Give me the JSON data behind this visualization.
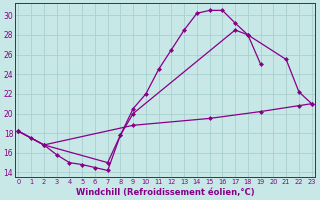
{
  "background_color": "#c8e8e8",
  "grid_color": "#a8d0d0",
  "line_color": "#880088",
  "markersize": 2.5,
  "linewidth": 0.9,
  "xlabel": "Windchill (Refroidissement éolien,°C)",
  "xlim": [
    -0.3,
    23.3
  ],
  "ylim": [
    13.5,
    31.2
  ],
  "yticks": [
    14,
    16,
    18,
    20,
    22,
    24,
    26,
    28,
    30
  ],
  "xticks": [
    0,
    1,
    2,
    3,
    4,
    5,
    6,
    7,
    8,
    9,
    10,
    11,
    12,
    13,
    14,
    15,
    16,
    17,
    18,
    19,
    20,
    21,
    22,
    23
  ],
  "line1_x": [
    0,
    1,
    2,
    3,
    4,
    5,
    6,
    7,
    8,
    9,
    10,
    11,
    12,
    13,
    14,
    15,
    16,
    17,
    18,
    19
  ],
  "line1_y": [
    18.2,
    17.5,
    16.8,
    15.8,
    15.0,
    14.8,
    14.5,
    14.2,
    17.8,
    20.5,
    22.0,
    24.5,
    26.5,
    28.5,
    30.2,
    30.5,
    30.5,
    29.2,
    28.0,
    25.0
  ],
  "line2_x": [
    0,
    2,
    7,
    8,
    9,
    17,
    18,
    21,
    22,
    23
  ],
  "line2_y": [
    18.2,
    16.8,
    15.0,
    17.8,
    20.0,
    28.5,
    28.0,
    25.5,
    22.2,
    21.0
  ],
  "line3_x": [
    0,
    2,
    9,
    15,
    19,
    22,
    23
  ],
  "line3_y": [
    18.2,
    16.8,
    18.8,
    19.5,
    20.2,
    20.8,
    21.0
  ]
}
